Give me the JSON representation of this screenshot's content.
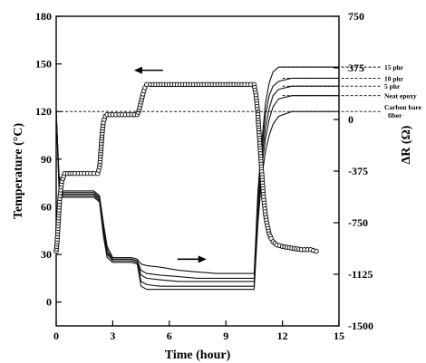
{
  "chart_data": {
    "type": "line",
    "xlabel": "Time (hour)",
    "ylabel": "Temperature (°C)",
    "y2label": "ΔR (Ω)",
    "xlim": [
      0,
      15
    ],
    "ylim": [
      -15,
      180
    ],
    "y2lim": [
      -1500,
      750
    ],
    "x_ticks": [
      0,
      3,
      6,
      9,
      12,
      15
    ],
    "y_ticks": [
      0,
      30,
      60,
      90,
      120,
      150,
      180
    ],
    "y2_ticks": [
      -1500,
      -1125,
      -750,
      -375,
      0,
      375,
      750
    ],
    "y2_tick_labels": [
      "-1500",
      "-1125",
      "-750",
      "-375",
      "0",
      "375",
      "750"
    ],
    "grid": false,
    "annotations": [
      {
        "type": "arrow",
        "direction": "left",
        "refers_to": "temperature",
        "at": [
          4.9,
          146
        ]
      },
      {
        "type": "arrow",
        "direction": "right",
        "refers_to": "resistance",
        "at": [
          7.2,
          27
        ]
      }
    ],
    "temperature_series": {
      "name": "Temperature",
      "axis": "left",
      "marker": "open-circle",
      "points": [
        [
          0.0,
          32
        ],
        [
          0.05,
          38
        ],
        [
          0.1,
          48
        ],
        [
          0.15,
          58
        ],
        [
          0.2,
          67
        ],
        [
          0.3,
          76
        ],
        [
          0.45,
          81
        ],
        [
          0.6,
          81
        ],
        [
          1.0,
          81
        ],
        [
          1.5,
          81
        ],
        [
          2.0,
          81
        ],
        [
          2.2,
          81
        ],
        [
          2.3,
          85
        ],
        [
          2.35,
          92
        ],
        [
          2.4,
          100
        ],
        [
          2.45,
          108
        ],
        [
          2.5,
          113
        ],
        [
          2.6,
          117
        ],
        [
          2.7,
          118
        ],
        [
          3.0,
          118
        ],
        [
          3.5,
          118
        ],
        [
          4.0,
          118
        ],
        [
          4.3,
          118
        ],
        [
          4.4,
          121
        ],
        [
          4.5,
          126
        ],
        [
          4.6,
          131
        ],
        [
          4.7,
          135
        ],
        [
          4.8,
          137
        ],
        [
          5.0,
          137
        ],
        [
          6.0,
          137
        ],
        [
          7.0,
          137
        ],
        [
          8.0,
          137
        ],
        [
          9.0,
          137
        ],
        [
          10.0,
          137
        ],
        [
          10.5,
          137
        ],
        [
          10.6,
          130
        ],
        [
          10.7,
          118
        ],
        [
          10.8,
          100
        ],
        [
          10.9,
          82
        ],
        [
          11.0,
          66
        ],
        [
          11.1,
          55
        ],
        [
          11.2,
          48
        ],
        [
          11.3,
          43
        ],
        [
          11.4,
          40
        ],
        [
          11.5,
          38
        ],
        [
          11.7,
          36
        ],
        [
          12.0,
          35
        ],
        [
          12.5,
          34
        ],
        [
          13.0,
          33
        ],
        [
          13.5,
          33
        ],
        [
          13.8,
          32
        ]
      ]
    },
    "series": [
      {
        "name": "15 phr",
        "axis": "right",
        "points": [
          [
            0.0,
            120
          ],
          [
            0.15,
            80
          ],
          [
            0.35,
            70
          ],
          [
            1.0,
            70
          ],
          [
            2.0,
            70
          ],
          [
            2.3,
            67
          ],
          [
            2.5,
            50
          ],
          [
            2.7,
            35
          ],
          [
            3.0,
            28
          ],
          [
            3.5,
            28
          ],
          [
            4.0,
            28
          ],
          [
            4.3,
            27
          ],
          [
            4.5,
            24
          ],
          [
            4.8,
            23
          ],
          [
            5.5,
            22
          ],
          [
            6.5,
            20
          ],
          [
            7.5,
            19
          ],
          [
            8.5,
            18
          ],
          [
            9.5,
            18
          ],
          [
            10.5,
            18
          ],
          [
            10.7,
            70
          ],
          [
            10.9,
            100
          ],
          [
            11.1,
            125
          ],
          [
            11.3,
            138
          ],
          [
            11.5,
            145
          ],
          [
            11.8,
            148
          ],
          [
            12.5,
            148
          ],
          [
            15,
            148
          ]
        ]
      },
      {
        "name": "10 phr",
        "axis": "right",
        "points": [
          [
            0.0,
            120
          ],
          [
            0.15,
            78
          ],
          [
            0.35,
            69
          ],
          [
            1.0,
            69
          ],
          [
            2.0,
            69
          ],
          [
            2.3,
            66
          ],
          [
            2.5,
            48
          ],
          [
            2.7,
            33
          ],
          [
            3.0,
            27
          ],
          [
            3.5,
            27
          ],
          [
            4.0,
            27
          ],
          [
            4.3,
            26
          ],
          [
            4.5,
            20
          ],
          [
            4.8,
            18
          ],
          [
            5.5,
            17
          ],
          [
            6.5,
            16
          ],
          [
            7.5,
            15
          ],
          [
            8.5,
            15
          ],
          [
            9.5,
            15
          ],
          [
            10.5,
            15
          ],
          [
            10.7,
            65
          ],
          [
            10.9,
            95
          ],
          [
            11.1,
            118
          ],
          [
            11.3,
            130
          ],
          [
            11.5,
            136
          ],
          [
            11.8,
            139
          ],
          [
            12.5,
            141
          ],
          [
            15,
            141
          ]
        ]
      },
      {
        "name": "5 phr",
        "axis": "right",
        "points": [
          [
            0.0,
            120
          ],
          [
            0.15,
            76
          ],
          [
            0.35,
            68
          ],
          [
            1.0,
            68
          ],
          [
            2.0,
            68
          ],
          [
            2.3,
            65
          ],
          [
            2.5,
            46
          ],
          [
            2.7,
            31
          ],
          [
            3.0,
            27
          ],
          [
            3.5,
            27
          ],
          [
            4.0,
            27
          ],
          [
            4.3,
            26
          ],
          [
            4.5,
            17
          ],
          [
            4.8,
            15
          ],
          [
            5.5,
            14
          ],
          [
            6.5,
            13
          ],
          [
            7.5,
            13
          ],
          [
            8.5,
            13
          ],
          [
            9.5,
            13
          ],
          [
            10.5,
            13
          ],
          [
            10.7,
            60
          ],
          [
            10.9,
            90
          ],
          [
            11.1,
            110
          ],
          [
            11.3,
            122
          ],
          [
            11.5,
            130
          ],
          [
            11.8,
            134
          ],
          [
            12.5,
            136
          ],
          [
            15,
            136
          ]
        ]
      },
      {
        "name": "Neat epoxy",
        "axis": "right",
        "points": [
          [
            0.0,
            120
          ],
          [
            0.15,
            74
          ],
          [
            0.35,
            67
          ],
          [
            1.0,
            67
          ],
          [
            2.0,
            67
          ],
          [
            2.3,
            64
          ],
          [
            2.5,
            44
          ],
          [
            2.7,
            30
          ],
          [
            3.0,
            26
          ],
          [
            3.5,
            26
          ],
          [
            4.0,
            26
          ],
          [
            4.3,
            25
          ],
          [
            4.5,
            13
          ],
          [
            4.8,
            11
          ],
          [
            5.5,
            10
          ],
          [
            6.5,
            10
          ],
          [
            7.5,
            10
          ],
          [
            8.5,
            10
          ],
          [
            9.5,
            10
          ],
          [
            10.5,
            10
          ],
          [
            10.7,
            55
          ],
          [
            10.9,
            85
          ],
          [
            11.1,
            103
          ],
          [
            11.3,
            115
          ],
          [
            11.5,
            123
          ],
          [
            11.8,
            128
          ],
          [
            12.5,
            130
          ],
          [
            15,
            130
          ]
        ]
      },
      {
        "name": "Carbon bare fiber",
        "axis": "right",
        "points": [
          [
            0.0,
            120
          ],
          [
            0.15,
            72
          ],
          [
            0.35,
            66
          ],
          [
            1.0,
            66
          ],
          [
            2.0,
            66
          ],
          [
            2.3,
            63
          ],
          [
            2.5,
            42
          ],
          [
            2.7,
            28
          ],
          [
            3.0,
            25
          ],
          [
            3.5,
            25
          ],
          [
            4.0,
            25
          ],
          [
            4.3,
            24
          ],
          [
            4.5,
            10
          ],
          [
            4.8,
            8
          ],
          [
            5.5,
            8
          ],
          [
            6.5,
            8
          ],
          [
            7.5,
            8
          ],
          [
            8.5,
            8
          ],
          [
            9.5,
            8
          ],
          [
            10.5,
            8
          ],
          [
            10.7,
            50
          ],
          [
            10.9,
            78
          ],
          [
            11.1,
            95
          ],
          [
            11.3,
            105
          ],
          [
            11.5,
            112
          ],
          [
            11.8,
            117
          ],
          [
            12.5,
            120
          ],
          [
            15,
            120
          ]
        ]
      }
    ]
  }
}
